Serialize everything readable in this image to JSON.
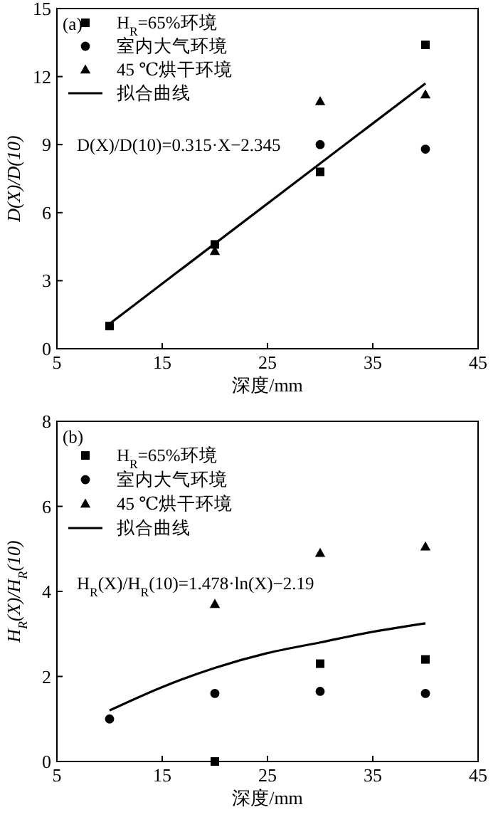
{
  "chart_data": [
    {
      "type": "scatter",
      "annotations": [
        "(a)",
        "D(X)/D(10)=0.315·X−2.345"
      ],
      "xlabel": "深度/mm",
      "ylabel": "D(X)/D(10)",
      "xlim": [
        5,
        45
      ],
      "xticks": [
        5,
        15,
        25,
        35,
        45
      ],
      "ylim": [
        0,
        15
      ],
      "yticks": [
        0,
        3,
        6,
        9,
        12,
        15
      ],
      "grid": false,
      "legend": "top left",
      "series": [
        {
          "name": "H$_{R}$=65%环境",
          "color": "#000000",
          "marker": "square",
          "x": [
            10,
            20,
            30,
            40
          ],
          "values": [
            1,
            4.6,
            7.8,
            13.4
          ]
        },
        {
          "name": "室内大气环境",
          "color": "#000000",
          "marker": "circle",
          "x": [
            30,
            40
          ],
          "values": [
            9.0,
            8.8
          ]
        },
        {
          "name": "45 ℃烘干环境",
          "color": "#000000",
          "marker": "triangle",
          "x": [
            20,
            30,
            40
          ],
          "values": [
            4.3,
            10.9,
            11.2
          ]
        },
        {
          "name": "拟合曲线",
          "type": "line",
          "color": "#000000",
          "marker": "none",
          "line_style": "solid",
          "x": [
            10,
            40
          ],
          "values": [
            1.1,
            11.7
          ]
        }
      ]
    },
    {
      "type": "scatter",
      "annotations": [
        "(b)",
        "H$_{R}$(X)/H$_{R}$(10)=1.478·ln(X)−2.19"
      ],
      "xlabel": "深度/mm",
      "ylabel": "H$_{R}$(X)/H$_{R}$(10)",
      "xlim": [
        5,
        45
      ],
      "xticks": [
        5,
        15,
        25,
        35,
        45
      ],
      "ylim": [
        0,
        8
      ],
      "yticks": [
        0,
        2,
        4,
        6,
        8
      ],
      "grid": false,
      "legend": "top left",
      "series": [
        {
          "name": "H$_{R}$=65%环境",
          "color": "#000000",
          "marker": "square",
          "x": [
            20,
            30,
            40
          ],
          "values": [
            0,
            2.3,
            2.4
          ]
        },
        {
          "name": "室内大气环境",
          "color": "#000000",
          "marker": "circle",
          "x": [
            10,
            20,
            30,
            40
          ],
          "values": [
            1,
            1.6,
            1.65,
            1.6
          ]
        },
        {
          "name": "45 ℃烘干环境",
          "color": "#000000",
          "marker": "triangle",
          "x": [
            20,
            30,
            40
          ],
          "values": [
            3.7,
            4.9,
            5.05
          ]
        },
        {
          "name": "拟合曲线",
          "type": "line",
          "color": "#000000",
          "marker": "none",
          "line_style": "solid",
          "x": [
            10,
            15,
            20,
            25,
            30,
            35,
            40
          ],
          "values": [
            1.2,
            1.75,
            2.2,
            2.55,
            2.8,
            3.05,
            3.25
          ]
        }
      ]
    }
  ]
}
